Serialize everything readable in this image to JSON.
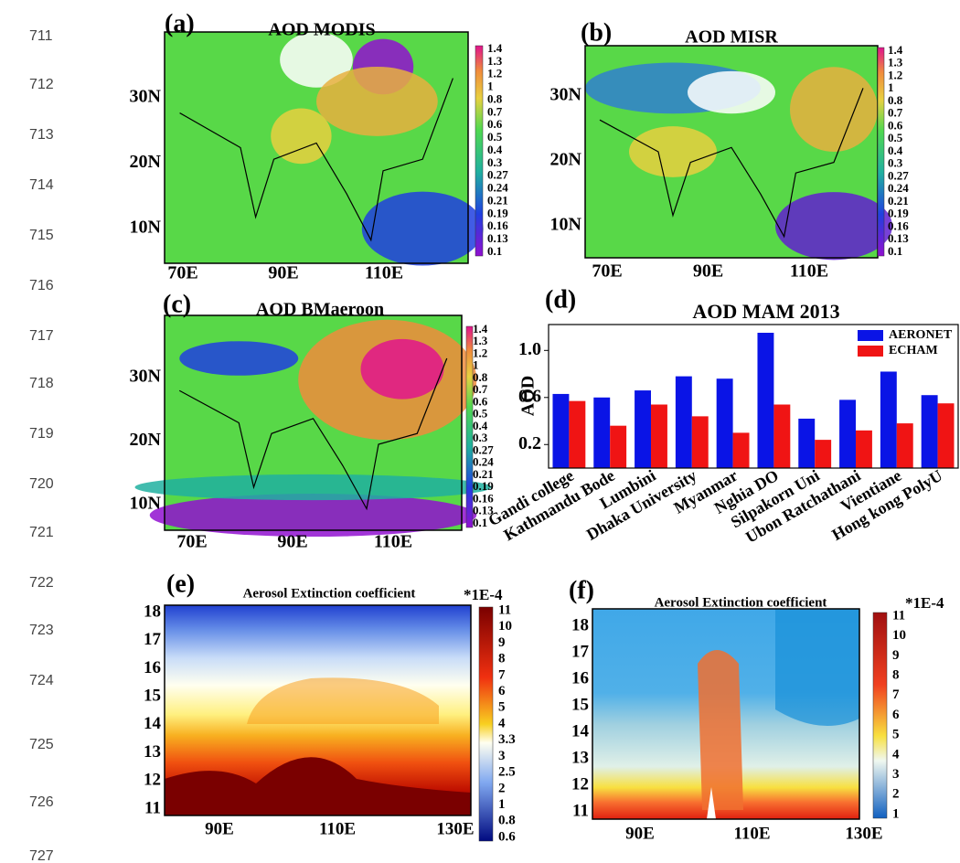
{
  "line_numbers": [
    "711",
    "712",
    "713",
    "714",
    "715",
    "716",
    "717",
    "718",
    "719",
    "720",
    "721",
    "722",
    "723",
    "724",
    "725",
    "726",
    "727"
  ],
  "panels": [
    {
      "label": "(a)",
      "title": "AOD MODIS",
      "yticks": [
        "30N",
        "20N",
        "10N"
      ],
      "xticks": [
        "70E",
        "90E",
        "110E"
      ],
      "colorbar": [
        "1.4",
        "1.3",
        "1.2",
        "1",
        "0.8",
        "0.7",
        "0.6",
        "0.5",
        "0.4",
        "0.3",
        "0.27",
        "0.24",
        "0.21",
        "0.19",
        "0.16",
        "0.13",
        "0.1"
      ]
    },
    {
      "label": "(b)",
      "title": "AOD MISR",
      "yticks": [
        "30N",
        "20N",
        "10N"
      ],
      "xticks": [
        "70E",
        "90E",
        "110E"
      ],
      "colorbar": [
        "1.4",
        "1.3",
        "1.2",
        "1",
        "0.8",
        "0.7",
        "0.6",
        "0.5",
        "0.4",
        "0.3",
        "0.27",
        "0.24",
        "0.21",
        "0.19",
        "0.16",
        "0.13",
        "0.1"
      ]
    },
    {
      "label": "(c)",
      "title": "AOD BMaeroon",
      "yticks": [
        "30N",
        "20N",
        "10N"
      ],
      "xticks": [
        "70E",
        "90E",
        "110E"
      ],
      "colorbar": [
        "1.4",
        "1.3",
        "1.2",
        "1",
        "0.8",
        "0.7",
        "0.6",
        "0.5",
        "0.4",
        "0.3",
        "0.27",
        "0.24",
        "0.21",
        "0.19",
        "0.16",
        "0.13",
        "0.1"
      ]
    },
    {
      "label": "(e)",
      "title": "Aerosol Extinction coefficient",
      "unit": "*1E-4",
      "yticks": [
        "18",
        "17",
        "16",
        "15",
        "14",
        "13",
        "12",
        "11"
      ],
      "xticks": [
        "90E",
        "110E",
        "130E"
      ],
      "colorbar": [
        "11",
        "10",
        "9",
        "8",
        "7",
        "6",
        "5",
        "4",
        "3.3",
        "3",
        "2.5",
        "2",
        "1",
        "0.8",
        "0.6"
      ]
    },
    {
      "label": "(f)",
      "title": "Aerosol Extinction coefficient",
      "unit": "*1E-4",
      "yticks": [
        "18",
        "17",
        "16",
        "15",
        "14",
        "13",
        "12",
        "11"
      ],
      "xticks": [
        "90E",
        "110E",
        "130E"
      ],
      "colorbar": [
        "11",
        "10",
        "9",
        "8",
        "7",
        "6",
        "5",
        "4",
        "3",
        "2",
        "1"
      ]
    }
  ],
  "chart_data": {
    "type": "bar",
    "label": "(d)",
    "title": "AOD MAM 2013",
    "y_label": "AOD",
    "categories": [
      "Gandi college",
      "Kathmandu Bode",
      "Lumbini",
      "Dhaka University",
      "Myanmar",
      "Nghia DO",
      "Silpakorn Uni",
      "Ubon Ratchathani",
      "Vientiane",
      "Hong kong PolyU"
    ],
    "series": [
      {
        "name": "AERONET",
        "color": "#0a14e6",
        "values": [
          0.63,
          0.6,
          0.66,
          0.78,
          0.76,
          1.15,
          0.42,
          0.58,
          0.82,
          0.62
        ]
      },
      {
        "name": "ECHAM",
        "color": "#f01414",
        "values": [
          0.57,
          0.36,
          0.54,
          0.44,
          0.3,
          0.54,
          0.24,
          0.32,
          0.38,
          0.55
        ]
      }
    ],
    "ylim": [
      0,
      1.22
    ],
    "yticks": [
      0.2,
      0.6,
      {
        "value": 1,
        "label": "1.0"
      }
    ],
    "legend": "upper right"
  }
}
